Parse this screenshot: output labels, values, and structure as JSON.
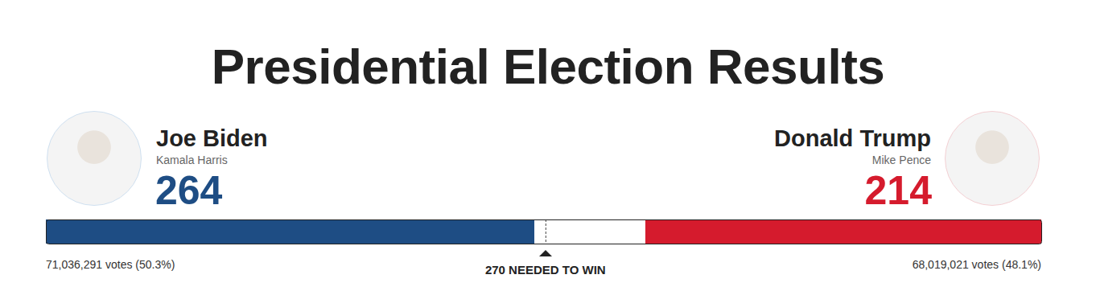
{
  "chart_data": {
    "type": "bar",
    "title": "Presidential Election Results",
    "orientation": "horizontal",
    "stacked": true,
    "data_labels": true,
    "tick_labels": false,
    "xlim": [
      0,
      538
    ],
    "series": [
      {
        "name": "Joe Biden",
        "subtitle": "Kamala Harris",
        "color": "#1e4d84",
        "values": [
          264
        ],
        "votes": "71,036,291 votes (50.3%)"
      },
      {
        "name": "Donald Trump",
        "subtitle": "Mike Pence",
        "color": "#d51b2d",
        "values": [
          214
        ],
        "votes": "68,019,021 votes (48.1%)"
      }
    ],
    "annotations": [
      {
        "value": 270,
        "label": "270 NEEDED TO WIN"
      }
    ]
  }
}
